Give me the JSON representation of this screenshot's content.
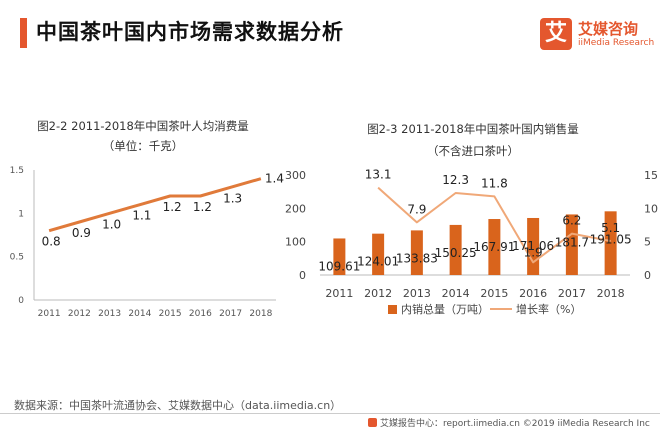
{
  "header": {
    "title": "中国茶叶国内市场需求数据分析",
    "logo_mark": "艾",
    "logo_name": "艾媒咨询",
    "logo_sub": "iiMedia Research"
  },
  "colors": {
    "accent": "#e4572e",
    "line": "#e07a3a",
    "bar": "#d9641c",
    "growth": "#f0a878",
    "axis": "#bbbbbb"
  },
  "chart_data": [
    {
      "type": "line",
      "title": "图2-2 2011-2018年中国茶叶人均消费量",
      "subtitle": "（单位：千克）",
      "categories": [
        "2011",
        "2012",
        "2013",
        "2014",
        "2015",
        "2016",
        "2017",
        "2018"
      ],
      "values": [
        0.8,
        0.9,
        1.0,
        1.1,
        1.2,
        1.2,
        1.3,
        1.4
      ],
      "value_labels": [
        "0.8",
        "0.9",
        "1.0",
        "1.1",
        "1.2",
        "1.2",
        "1.3",
        "1.4"
      ],
      "yticks": [
        "0",
        "0.5",
        "1",
        "1.5"
      ],
      "ylim": [
        0,
        1.5
      ],
      "grid": false
    },
    {
      "type": "bar",
      "title": "图2-3 2011-2018年中国茶叶国内销售量",
      "subtitle": "（不含进口茶叶）",
      "categories": [
        "2011",
        "2012",
        "2013",
        "2014",
        "2015",
        "2016",
        "2017",
        "2018"
      ],
      "series": [
        {
          "name": "内销总量（万吨）",
          "type": "bar",
          "axis": "left",
          "values": [
            109.61,
            124.01,
            133.83,
            150.25,
            167.91,
            171.06,
            181.7,
            191.05
          ],
          "labels": [
            "109.61",
            "124.01",
            "133.83",
            "150.25",
            "167.91",
            "171.06",
            "181.7",
            "191.05"
          ]
        },
        {
          "name": "增长率（%）",
          "type": "line",
          "axis": "right",
          "values": [
            null,
            13.1,
            7.9,
            12.3,
            11.8,
            1.9,
            6.2,
            5.1
          ],
          "labels": [
            "",
            "13.1",
            "7.9",
            "12.3",
            "11.8",
            "1.9",
            "6.2",
            "5.1"
          ]
        }
      ],
      "yticks_left": [
        "0",
        "100",
        "200",
        "300"
      ],
      "ylim_left": [
        0,
        300
      ],
      "yticks_right": [
        "0",
        "5",
        "10",
        "15"
      ],
      "ylim_right": [
        0,
        15
      ],
      "legend": "bottom"
    }
  ],
  "footer": {
    "source": "数据来源：中国茶叶流通协会、艾媒数据中心（data.iimedia.cn）",
    "credit": "艾媒报告中心：report.iimedia.cn   ©2019  iiMedia Research  Inc"
  }
}
